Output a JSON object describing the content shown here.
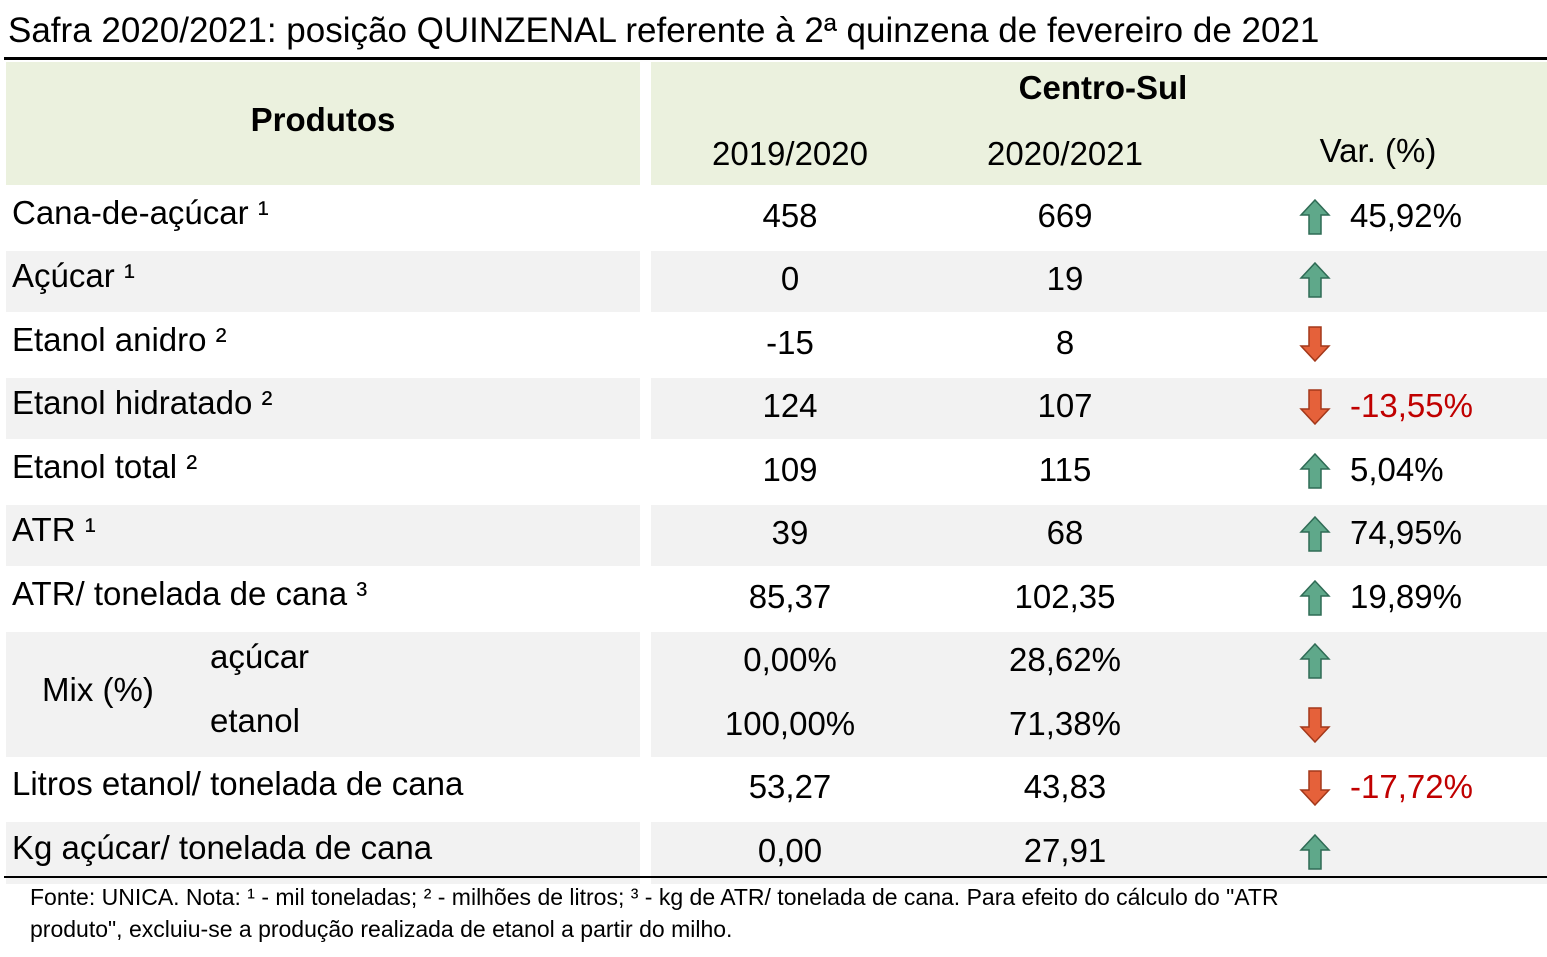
{
  "title": "Safra 2020/2021: posição QUINZENAL referente à 2ª quinzena de fevereiro de 2021",
  "header": {
    "products": "Produtos",
    "region": "Centro-Sul",
    "columns": [
      "2019/2020",
      "2020/2021",
      "Var. (%)"
    ]
  },
  "rows": [
    {
      "product": "Cana-de-açúcar ¹",
      "values": [
        "458",
        "669"
      ],
      "variation": "45,92%",
      "trend": "up"
    },
    {
      "product": "Açúcar ¹",
      "values": [
        "0",
        "19"
      ],
      "trend": "up"
    },
    {
      "product": "Etanol anidro ²",
      "values": [
        "-15",
        "8"
      ],
      "trend": "down"
    },
    {
      "product": "Etanol hidratado ²",
      "values": [
        "124",
        "107"
      ],
      "variation": "-13,55%",
      "trend": "down"
    },
    {
      "product": "Etanol total ²",
      "values": [
        "109",
        "115"
      ],
      "variation": "5,04%",
      "trend": "up"
    },
    {
      "product": "ATR ¹",
      "values": [
        "39",
        "68"
      ],
      "variation": "74,95%",
      "trend": "up"
    },
    {
      "product": "ATR/ tonelada de cana ³",
      "values": [
        "85,37",
        "102,35"
      ],
      "variation": "19,89%",
      "trend": "up"
    },
    {
      "product": "Mix (%)",
      "subrows": [
        {
          "label": "açúcar",
          "values": [
            "0,00%",
            "28,62%"
          ],
          "trend": "up"
        },
        {
          "label": "etanol",
          "values": [
            "100,00%",
            "71,38%"
          ],
          "trend": "down"
        }
      ]
    },
    {
      "product": "Litros etanol/ tonelada de cana",
      "values": [
        "53,27",
        "43,83"
      ],
      "variation": "-17,72%",
      "trend": "down"
    },
    {
      "product": "Kg açúcar/ tonelada de cana",
      "values": [
        "0,00",
        "27,91"
      ],
      "trend": "up"
    }
  ],
  "footnote": [
    "Fonte: UNICA. Nota: ¹ - mil toneladas; ² - milhões de litros; ³ - kg de ATR/ tonelada de cana. Para efeito do cálculo do \"ATR",
    "produto\", excluiu-se a produção realizada de etanol a partir do milho."
  ]
}
